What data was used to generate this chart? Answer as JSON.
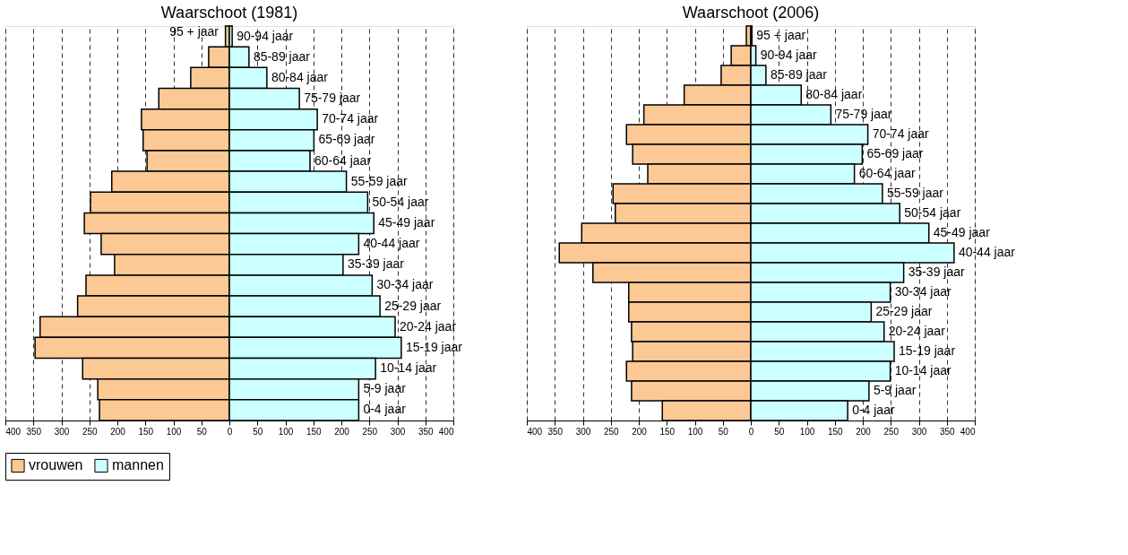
{
  "chart_data": [
    {
      "type": "bar",
      "orientation": "horizontal",
      "stacked": true,
      "title": "Waarschoot (1981)",
      "categories": [
        "90-94 jaar",
        "85-89 jaar",
        "80-84 jaar",
        "75-79 jaar",
        "70-74 jaar",
        "65-69 jaar",
        "60-64 jaar",
        "55-59 jaar",
        "50-54 jaar",
        "45-49 jaar",
        "40-44 jaar",
        "35-39 jaar",
        "30-34 jaar",
        "25-29 jaar",
        "20-24 jaar",
        "15-19 jaar",
        "10-14 jaar",
        "5-9 jaar",
        "0-4 jaar"
      ],
      "series": [
        {
          "name": "vrouwen",
          "color": "#fcc894",
          "values": [
            -7,
            -37,
            -69,
            -126,
            -157,
            -154,
            -147,
            -210,
            -248,
            -259,
            -229,
            -205,
            -256,
            -271,
            -338,
            -347,
            -262,
            -235,
            -232
          ]
        },
        {
          "name": "mannen",
          "color": "#ccffff",
          "values": [
            5,
            35,
            67,
            125,
            157,
            151,
            144,
            209,
            247,
            258,
            231,
            203,
            255,
            269,
            296,
            307,
            261,
            231,
            231
          ]
        }
      ],
      "xlim": [
        -400,
        400
      ],
      "xticks": [
        {
          "value": -400,
          "label": "400"
        },
        {
          "value": -350,
          "label": "350"
        },
        {
          "value": -300,
          "label": "300"
        },
        {
          "value": -250,
          "label": "250"
        },
        {
          "value": -200,
          "label": "200"
        },
        {
          "value": -150,
          "label": "150"
        },
        {
          "value": -100,
          "label": "100"
        },
        {
          "value": -50,
          "label": "50"
        },
        0,
        50,
        100,
        150,
        200,
        250,
        300,
        350,
        400
      ],
      "grid": "x",
      "legend": "bottom",
      "tick_labels": "x",
      "annotations": [
        "95 + jaar"
      ]
    },
    {
      "type": "bar",
      "orientation": "horizontal",
      "stacked": true,
      "title": "Waarschoot (2006)",
      "categories": [
        "95 + jaar",
        "90-94 jaar",
        "85-89 jaar",
        "80-84 jaar",
        "75-79 jaar",
        "70-74 jaar",
        "65-69 jaar",
        "60-64 jaar",
        "55-59 jaar",
        "50-54 jaar",
        "45-49 jaar",
        "40-44 jaar",
        "35-39 jaar",
        "30-34 jaar",
        "25-29 jaar",
        "20-24 jaar",
        "15-19 jaar",
        "10-14 jaar",
        "5-9 jaar",
        "0-4 jaar"
      ],
      "series": [
        {
          "name": "vrouwen",
          "color": "#fcc894",
          "values": [
            -8,
            -35,
            -53,
            -119,
            -191,
            -222,
            -211,
            -184,
            -246,
            -242,
            -302,
            -342,
            -282,
            -218,
            -218,
            -213,
            -211,
            -222,
            -213,
            -158
          ]
        },
        {
          "name": "mannen",
          "color": "#ccffff",
          "values": [
            2,
            9,
            27,
            90,
            143,
            209,
            199,
            185,
            235,
            266,
            318,
            363,
            273,
            249,
            215,
            238,
            256,
            249,
            211,
            173
          ]
        }
      ],
      "xlim": [
        -400,
        400
      ],
      "xticks": [
        {
          "value": -400,
          "label": "400"
        },
        {
          "value": -350,
          "label": "350"
        },
        {
          "value": -300,
          "label": "300"
        },
        {
          "value": -250,
          "label": "250"
        },
        {
          "value": -200,
          "label": "200"
        },
        {
          "value": -150,
          "label": "150"
        },
        {
          "value": -100,
          "label": "100"
        },
        {
          "value": -50,
          "label": "50"
        },
        0,
        50,
        100,
        150,
        200,
        250,
        300,
        350,
        400
      ],
      "grid": "x",
      "legend": "bottom",
      "tick_labels": "x"
    }
  ]
}
